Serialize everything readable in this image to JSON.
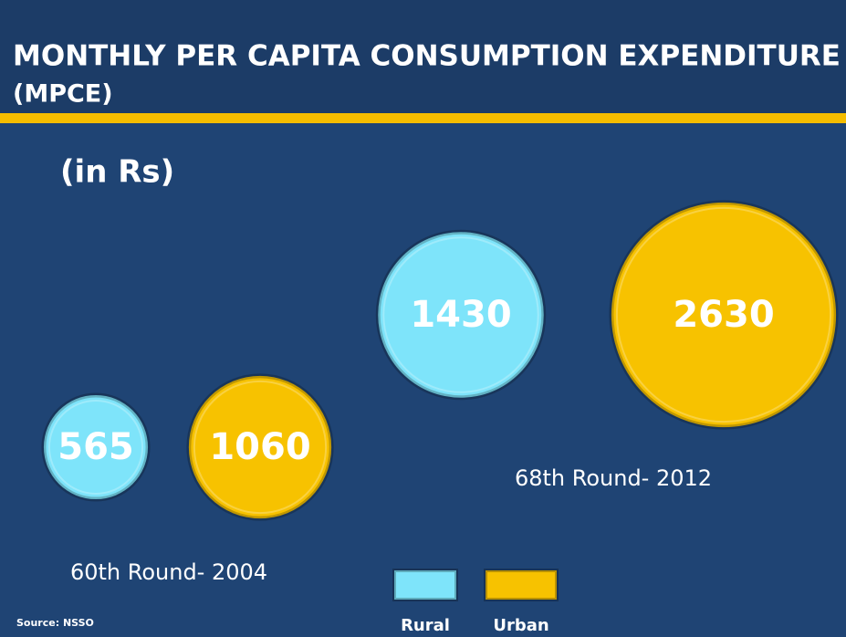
{
  "chart_data": {
    "type": "bubble",
    "title": "MONTHLY PER CAPITA CONSUMPTION EXPENDITURE",
    "subtitle": "(MPCE)",
    "unit": "(in Rs)",
    "categories": [
      "60th Round- 2004",
      "68th Round- 2012"
    ],
    "series": [
      {
        "name": "Rural",
        "color": "#7ee4fa",
        "values": [
          565,
          1430
        ]
      },
      {
        "name": "Urban",
        "color": "#f7c200",
        "values": [
          1060,
          2630
        ]
      }
    ],
    "source": "Source: NSSO"
  }
}
